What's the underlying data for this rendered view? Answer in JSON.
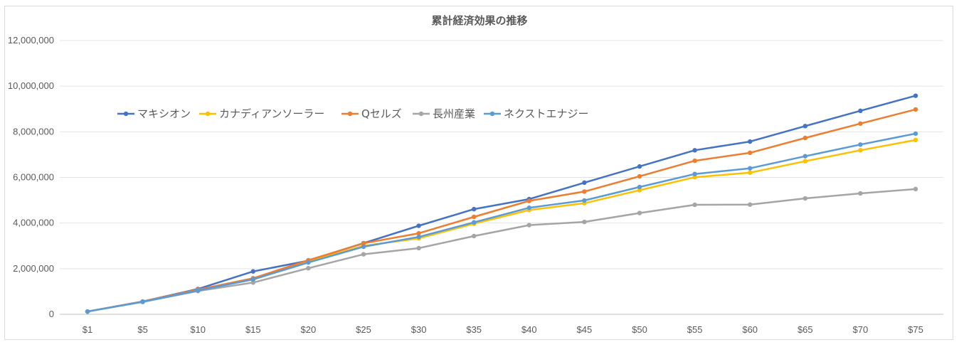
{
  "chart_data": {
    "type": "line",
    "title": "累計経済効果の推移",
    "xlabel": "",
    "ylabel": "",
    "categories": [
      "$1",
      "$5",
      "$10",
      "$15",
      "$20",
      "$25",
      "$30",
      "$35",
      "$40",
      "$45",
      "$50",
      "$55",
      "$60",
      "$65",
      "$70",
      "$75"
    ],
    "ylim": [
      0,
      12000000
    ],
    "yticks": [
      "0",
      "2,000,000",
      "4,000,000",
      "6,000,000",
      "8,000,000",
      "10,000,000",
      "12,000,000"
    ],
    "grid": true,
    "legend_position": "top-left inside plot",
    "series": [
      {
        "name": "マキシオン",
        "color": "#4472C4",
        "values": [
          120000,
          560000,
          1110000,
          1880000,
          2350000,
          3120000,
          3880000,
          4610000,
          5050000,
          5770000,
          6480000,
          7190000,
          7570000,
          8250000,
          8920000,
          9580000
        ]
      },
      {
        "name": "カナディアンソーラー",
        "color": "#FFC000",
        "values": [
          120000,
          550000,
          1080000,
          1520000,
          2310000,
          3000000,
          3330000,
          3970000,
          4570000,
          4870000,
          5440000,
          6010000,
          6210000,
          6710000,
          7190000,
          7640000
        ]
      },
      {
        "name": "Qセルズ",
        "color": "#ED7D31",
        "values": [
          120000,
          560000,
          1080000,
          1580000,
          2370000,
          3110000,
          3550000,
          4270000,
          4970000,
          5380000,
          6050000,
          6730000,
          7080000,
          7730000,
          8360000,
          8980000
        ]
      },
      {
        "name": "長州産業",
        "color": "#A5A5A5",
        "values": [
          120000,
          540000,
          1020000,
          1390000,
          2020000,
          2630000,
          2900000,
          3430000,
          3910000,
          4050000,
          4440000,
          4800000,
          4810000,
          5080000,
          5300000,
          5490000
        ]
      },
      {
        "name": "ネクストエナジー",
        "color": "#5B9BD5",
        "values": [
          120000,
          550000,
          1040000,
          1530000,
          2270000,
          2960000,
          3390000,
          4030000,
          4670000,
          4990000,
          5580000,
          6150000,
          6400000,
          6930000,
          7440000,
          7920000
        ]
      }
    ]
  }
}
